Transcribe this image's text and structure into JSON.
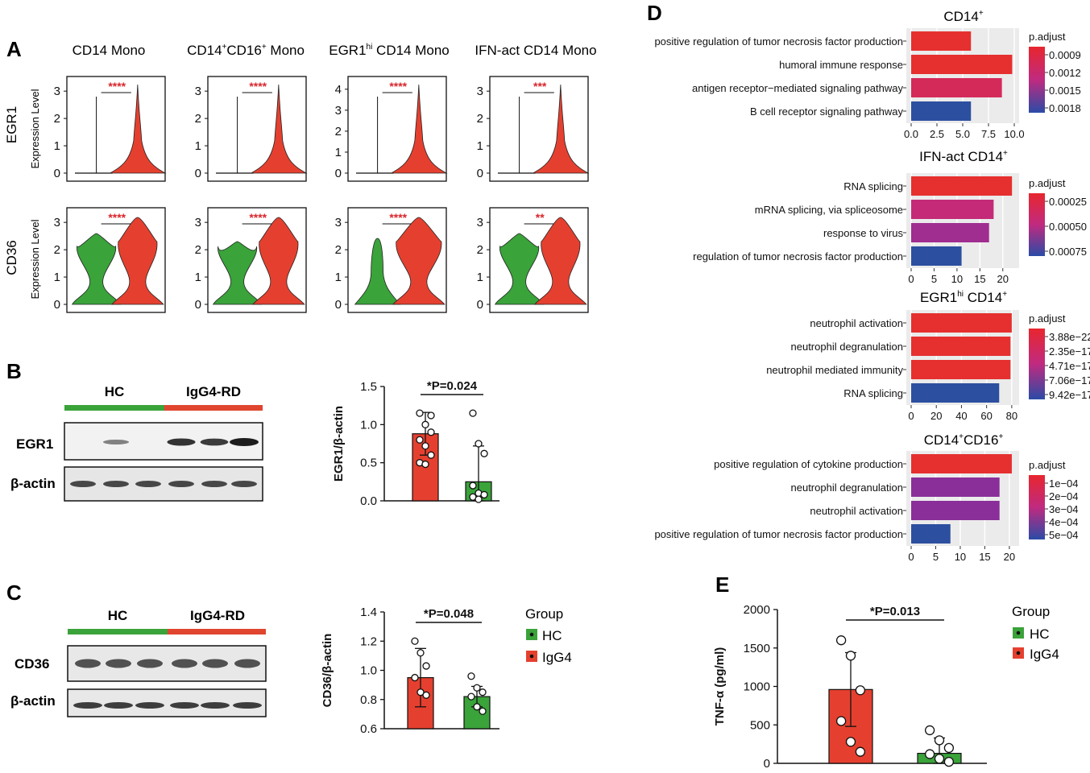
{
  "panels": {
    "A": "A",
    "B": "B",
    "C": "C",
    "D": "D",
    "E": "E"
  },
  "colors": {
    "red": "#e5402f",
    "green": "#3aa33a",
    "blue": "#2c4fa0",
    "purple": "#8a2f9a",
    "magenta": "#c42a78"
  },
  "violin": {
    "ylabel": "Expression Level",
    "genes": [
      "EGR1",
      "CD36"
    ],
    "columns": [
      {
        "title_main": "CD14 Mono",
        "title_sup": "",
        "title_rest": ""
      },
      {
        "title_main": "CD14",
        "title_sup": "+",
        "title_rest": "CD16",
        "title_sup2": "+",
        "title_tail": " Mono"
      },
      {
        "title_main": "EGR1",
        "title_sup": "hi",
        "title_rest": " CD14 Mono"
      },
      {
        "title_main": "IFN-act CD14 Mono",
        "title_sup": "",
        "title_rest": ""
      }
    ],
    "sig": [
      [
        "****",
        "****",
        "****",
        "***"
      ],
      [
        "****",
        "****",
        "****",
        "**"
      ]
    ],
    "egr1_ticks": [
      [
        "0",
        "1",
        "2",
        "3"
      ],
      [
        "0",
        "1",
        "2",
        "3"
      ],
      [
        "0",
        "1",
        "2",
        "3",
        "4"
      ],
      [
        "0",
        "1",
        "2",
        "3"
      ]
    ],
    "cd36_ticks": [
      [
        "0",
        "1",
        "2",
        "3"
      ],
      [
        "0",
        "1",
        "2",
        "3"
      ],
      [
        "0",
        "1",
        "2",
        "3"
      ],
      [
        "0",
        "1",
        "2",
        "3"
      ]
    ]
  },
  "blot_B": {
    "hc": "HC",
    "igg4": "IgG4-RD",
    "band1": "EGR1",
    "band2": "β-actin"
  },
  "blot_C": {
    "hc": "HC",
    "igg4": "IgG4-RD",
    "band1": "CD36",
    "band2": "β-actin"
  },
  "legend_C": {
    "title": "Group",
    "items": [
      "HC",
      "IgG4"
    ]
  },
  "legend_E": {
    "title": "Group",
    "items": [
      "HC",
      "IgG4"
    ]
  },
  "chart_data": [
    {
      "type": "bar",
      "id": "B",
      "ylabel": "EGR1/β-actin",
      "ylim": [
        0,
        1.5
      ],
      "yticks": [
        "0.0",
        "0.5",
        "1.0",
        "1.5"
      ],
      "annotation": "*P=0.024",
      "categories": [
        "IgG4-RD",
        "HC"
      ],
      "values": [
        0.88,
        0.25
      ],
      "errors": [
        0.28,
        0.47
      ],
      "points": [
        [
          1.15,
          1.0,
          0.9,
          0.8,
          0.72,
          0.6,
          0.5,
          0.48,
          1.12
        ],
        [
          1.15,
          0.75,
          0.62,
          0.2,
          0.1,
          0.08,
          0.05,
          0.02
        ]
      ]
    },
    {
      "type": "bar",
      "id": "C",
      "ylabel": "CD36/β-actin",
      "ylim": [
        0.6,
        1.4
      ],
      "yticks": [
        "0.6",
        "0.8",
        "1.0",
        "1.2",
        "1.4"
      ],
      "annotation": "*P=0.048",
      "categories": [
        "IgG4-RD",
        "HC"
      ],
      "values": [
        0.95,
        0.82
      ],
      "errors": [
        0.2,
        0.07
      ],
      "points": [
        [
          1.2,
          1.12,
          1.03,
          0.95,
          0.85,
          0.83
        ],
        [
          0.96,
          0.88,
          0.85,
          0.82,
          0.75,
          0.72
        ]
      ]
    },
    {
      "type": "bar",
      "orientation": "horizontal",
      "id": "D1",
      "title": "CD14",
      "title_sup": "+",
      "categories": [
        "positive regulation of tumor necrosis factor production",
        "humoral immune response",
        "antigen receptor−mediated signaling pathway",
        "B cell receptor signaling pathway"
      ],
      "values": [
        5.8,
        9.8,
        8.8,
        5.8
      ],
      "xticks": [
        "0.0",
        "2.5",
        "5.0",
        "7.5",
        "10.0"
      ],
      "xlim": [
        0,
        10
      ],
      "legend_title": "p.adjust",
      "legend_ticks": [
        "0.0009",
        "0.0012",
        "0.0015",
        "0.0018"
      ],
      "colors": [
        "#e5302f",
        "#e5302f",
        "#d42a5a",
        "#2c4fa0"
      ]
    },
    {
      "type": "bar",
      "orientation": "horizontal",
      "id": "D2",
      "title": "IFN-act CD14",
      "title_sup": "+",
      "categories": [
        "RNA splicing",
        "mRNA splicing, via spliceosome",
        "response to virus",
        "regulation of tumor necrosis factor production"
      ],
      "values": [
        22,
        18,
        17,
        11
      ],
      "xticks": [
        "0",
        "5",
        "10",
        "15",
        "20"
      ],
      "xlim": [
        0,
        22.5
      ],
      "legend_title": "p.adjust",
      "legend_ticks": [
        "0.00025",
        "0.00050",
        "0.00075"
      ],
      "colors": [
        "#e5302f",
        "#c42a78",
        "#a02d90",
        "#2c4fa0"
      ]
    },
    {
      "type": "bar",
      "orientation": "horizontal",
      "id": "D3",
      "title": "EGR1",
      "title_sup": "hi",
      "title_rest": " CD14",
      "title_sup2": "+",
      "categories": [
        "neutrophil activation",
        "neutrophil degranulation",
        "neutrophil mediated immunity",
        "RNA splicing"
      ],
      "values": [
        80,
        79,
        79,
        70
      ],
      "xticks": [
        "0",
        "20",
        "40",
        "60",
        "80"
      ],
      "xlim": [
        0,
        82
      ],
      "legend_title": "p.adjust",
      "legend_ticks": [
        "3.88e−22",
        "2.35e−17",
        "4.71e−17",
        "7.06e−17",
        "9.42e−17"
      ],
      "colors": [
        "#e5302f",
        "#e5302f",
        "#e5302f",
        "#2c4fa0"
      ]
    },
    {
      "type": "bar",
      "orientation": "horizontal",
      "id": "D4",
      "title": "CD14",
      "title_sup": "+",
      "title_rest": "CD16",
      "title_sup2": "+",
      "categories": [
        "positive regulation of cytokine production",
        "neutrophil degranulation",
        "neutrophil activation",
        "positive regulation of tumor necrosis factor production"
      ],
      "values": [
        20.5,
        18,
        18,
        8
      ],
      "xticks": [
        "0",
        "5",
        "10",
        "15",
        "20"
      ],
      "xlim": [
        0,
        21
      ],
      "legend_title": "p.adjust",
      "legend_ticks": [
        "1e−04",
        "2e−04",
        "3e−04",
        "4e−04",
        "5e−04"
      ],
      "colors": [
        "#e5302f",
        "#8a2f9a",
        "#8a2f9a",
        "#2c4fa0"
      ]
    },
    {
      "type": "bar",
      "id": "E",
      "ylabel": "TNF-α (pg/ml)",
      "ylim": [
        0,
        2000
      ],
      "yticks": [
        "0",
        "500",
        "1000",
        "1500",
        "2000"
      ],
      "annotation": "*P=0.013",
      "categories": [
        "IgG4",
        "HC"
      ],
      "values": [
        960,
        130
      ],
      "errors": [
        480,
        200
      ],
      "points": [
        [
          1600,
          1400,
          950,
          550,
          280,
          150
        ],
        [
          430,
          300,
          200,
          120,
          60,
          20
        ]
      ]
    }
  ]
}
